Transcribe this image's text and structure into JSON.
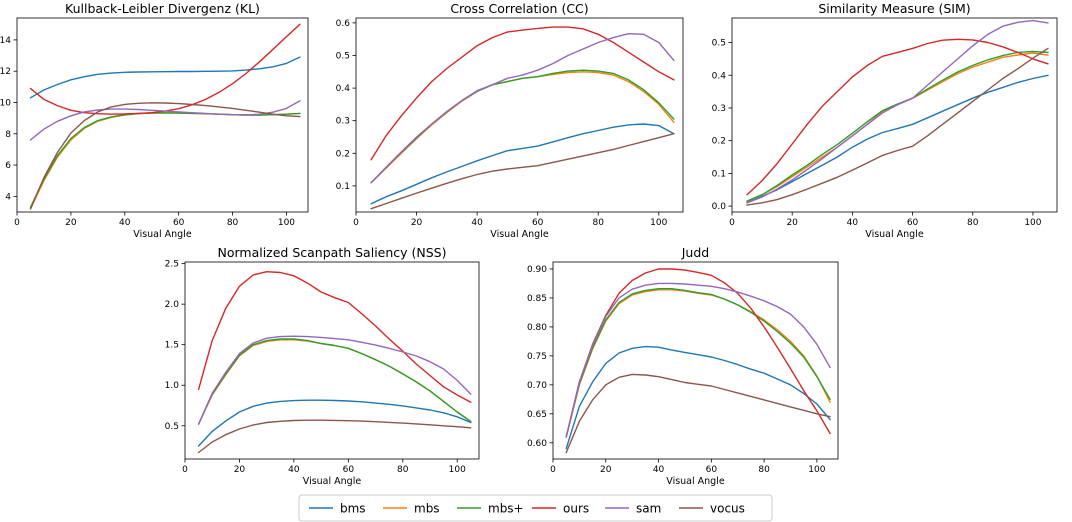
{
  "series_styles": {
    "bms": "#1f77b4",
    "mbs": "#ff7f0e",
    "mbs+": "#2ca02c",
    "ours": "#d62728",
    "sam": "#9467bd",
    "vocus": "#8c564b"
  },
  "legend": [
    "bms",
    "mbs",
    "mbs+",
    "ours",
    "sam",
    "vocus"
  ],
  "chart_data": [
    {
      "type": "line",
      "title": "Kullback-Leibler Divergenz (KL)",
      "xlabel": "Visual Angle",
      "ylabel": "",
      "xlim": [
        0,
        108
      ],
      "ylim": [
        3.0,
        15.4
      ],
      "xticks": [
        0,
        20,
        40,
        60,
        80,
        100
      ],
      "yticks": [
        4,
        6,
        8,
        10,
        12,
        14
      ],
      "x": [
        5,
        10,
        15,
        20,
        25,
        30,
        35,
        40,
        45,
        50,
        55,
        60,
        65,
        70,
        75,
        80,
        85,
        90,
        95,
        100,
        105
      ],
      "series": [
        {
          "name": "bms",
          "values": [
            10.3,
            10.8,
            11.15,
            11.45,
            11.65,
            11.8,
            11.88,
            11.93,
            11.95,
            11.96,
            11.97,
            11.98,
            11.98,
            11.99,
            12.0,
            12.02,
            12.07,
            12.15,
            12.28,
            12.5,
            12.9
          ]
        },
        {
          "name": "mbs",
          "values": [
            3.2,
            5.0,
            6.5,
            7.6,
            8.35,
            8.8,
            9.05,
            9.2,
            9.28,
            9.32,
            9.33,
            9.32,
            9.3,
            9.28,
            9.25,
            9.22,
            9.2,
            9.2,
            9.22,
            9.25,
            9.3
          ]
        },
        {
          "name": "mbs+",
          "values": [
            3.3,
            5.1,
            6.6,
            7.7,
            8.4,
            8.85,
            9.08,
            9.22,
            9.3,
            9.33,
            9.34,
            9.33,
            9.3,
            9.28,
            9.25,
            9.22,
            9.2,
            9.2,
            9.22,
            9.25,
            9.3
          ]
        },
        {
          "name": "ours",
          "values": [
            10.9,
            10.2,
            9.8,
            9.5,
            9.35,
            9.28,
            9.25,
            9.27,
            9.3,
            9.35,
            9.45,
            9.6,
            9.85,
            10.2,
            10.65,
            11.2,
            11.85,
            12.6,
            13.4,
            14.2,
            15.0
          ]
        },
        {
          "name": "sam",
          "values": [
            7.6,
            8.3,
            8.8,
            9.15,
            9.4,
            9.52,
            9.58,
            9.58,
            9.55,
            9.5,
            9.45,
            9.4,
            9.35,
            9.3,
            9.25,
            9.22,
            9.2,
            9.25,
            9.38,
            9.62,
            10.1
          ]
        },
        {
          "name": "vocus",
          "values": [
            3.2,
            5.2,
            6.8,
            8.05,
            8.85,
            9.4,
            9.72,
            9.88,
            9.95,
            9.98,
            9.97,
            9.93,
            9.87,
            9.8,
            9.72,
            9.62,
            9.5,
            9.38,
            9.25,
            9.15,
            9.1
          ]
        }
      ]
    },
    {
      "type": "line",
      "title": "Cross Correlation (CC)",
      "xlabel": "Visual Angle",
      "ylabel": "",
      "xlim": [
        0,
        108
      ],
      "ylim": [
        0.02,
        0.615
      ],
      "xticks": [
        0,
        20,
        40,
        60,
        80,
        100
      ],
      "yticks": [
        0.1,
        0.2,
        0.3,
        0.4,
        0.5,
        0.6
      ],
      "yticklabels": [
        "0.1",
        "0.2",
        "0.3",
        "0.4",
        "0.5",
        "0.6"
      ],
      "x": [
        5,
        10,
        15,
        20,
        25,
        30,
        35,
        40,
        45,
        50,
        55,
        60,
        65,
        70,
        75,
        80,
        85,
        90,
        95,
        100,
        105
      ],
      "series": [
        {
          "name": "bms",
          "values": [
            0.045,
            0.067,
            0.085,
            0.105,
            0.125,
            0.143,
            0.16,
            0.177,
            0.193,
            0.208,
            0.215,
            0.222,
            0.235,
            0.248,
            0.26,
            0.27,
            0.28,
            0.287,
            0.29,
            0.285,
            0.26
          ]
        },
        {
          "name": "mbs",
          "values": [
            0.11,
            0.155,
            0.2,
            0.245,
            0.287,
            0.325,
            0.36,
            0.39,
            0.41,
            0.42,
            0.43,
            0.435,
            0.442,
            0.448,
            0.45,
            0.448,
            0.44,
            0.42,
            0.39,
            0.35,
            0.295
          ]
        },
        {
          "name": "mbs+",
          "values": [
            0.11,
            0.157,
            0.203,
            0.247,
            0.29,
            0.327,
            0.362,
            0.39,
            0.41,
            0.42,
            0.43,
            0.435,
            0.445,
            0.452,
            0.455,
            0.452,
            0.445,
            0.425,
            0.395,
            0.355,
            0.305
          ]
        },
        {
          "name": "ours",
          "values": [
            0.18,
            0.255,
            0.315,
            0.37,
            0.42,
            0.46,
            0.495,
            0.53,
            0.555,
            0.572,
            0.578,
            0.583,
            0.587,
            0.587,
            0.582,
            0.565,
            0.54,
            0.51,
            0.48,
            0.45,
            0.425
          ]
        },
        {
          "name": "sam",
          "values": [
            0.11,
            0.158,
            0.205,
            0.25,
            0.29,
            0.328,
            0.362,
            0.392,
            0.41,
            0.43,
            0.44,
            0.455,
            0.475,
            0.5,
            0.52,
            0.54,
            0.555,
            0.567,
            0.565,
            0.54,
            0.485
          ]
        },
        {
          "name": "vocus",
          "values": [
            0.03,
            0.046,
            0.062,
            0.078,
            0.093,
            0.108,
            0.122,
            0.135,
            0.145,
            0.152,
            0.157,
            0.162,
            0.172,
            0.182,
            0.192,
            0.202,
            0.212,
            0.224,
            0.236,
            0.248,
            0.26
          ]
        }
      ]
    },
    {
      "type": "line",
      "title": "Similarity Measure (SIM)",
      "xlabel": "Visual Angle",
      "ylabel": "",
      "xlim": [
        0,
        108
      ],
      "ylim": [
        -0.018,
        0.575
      ],
      "xticks": [
        0,
        20,
        40,
        60,
        80,
        100
      ],
      "yticks": [
        0.0,
        0.1,
        0.2,
        0.3,
        0.4,
        0.5
      ],
      "yticklabels": [
        "0.0",
        "0.1",
        "0.2",
        "0.3",
        "0.4",
        "0.5"
      ],
      "x": [
        5,
        10,
        15,
        20,
        25,
        30,
        35,
        40,
        45,
        50,
        55,
        60,
        65,
        70,
        75,
        80,
        85,
        90,
        95,
        100,
        105
      ],
      "series": [
        {
          "name": "bms",
          "values": [
            0.01,
            0.03,
            0.05,
            0.075,
            0.1,
            0.125,
            0.15,
            0.18,
            0.205,
            0.225,
            0.237,
            0.25,
            0.27,
            0.29,
            0.31,
            0.33,
            0.348,
            0.363,
            0.378,
            0.39,
            0.4
          ]
        },
        {
          "name": "mbs",
          "values": [
            0.015,
            0.035,
            0.06,
            0.09,
            0.12,
            0.15,
            0.18,
            0.215,
            0.25,
            0.29,
            0.31,
            0.33,
            0.355,
            0.38,
            0.405,
            0.425,
            0.44,
            0.455,
            0.462,
            0.468,
            0.462
          ]
        },
        {
          "name": "mbs+",
          "values": [
            0.015,
            0.035,
            0.063,
            0.095,
            0.125,
            0.158,
            0.188,
            0.223,
            0.258,
            0.292,
            0.312,
            0.33,
            0.358,
            0.385,
            0.41,
            0.43,
            0.447,
            0.46,
            0.47,
            0.473,
            0.47
          ]
        },
        {
          "name": "ours",
          "values": [
            0.035,
            0.078,
            0.13,
            0.19,
            0.25,
            0.305,
            0.35,
            0.395,
            0.43,
            0.458,
            0.47,
            0.482,
            0.497,
            0.507,
            0.51,
            0.508,
            0.5,
            0.487,
            0.47,
            0.45,
            0.435
          ]
        },
        {
          "name": "sam",
          "values": [
            0.01,
            0.028,
            0.052,
            0.08,
            0.112,
            0.145,
            0.18,
            0.215,
            0.25,
            0.285,
            0.31,
            0.33,
            0.37,
            0.41,
            0.45,
            0.49,
            0.525,
            0.55,
            0.562,
            0.567,
            0.56
          ]
        },
        {
          "name": "vocus",
          "values": [
            0.003,
            0.01,
            0.02,
            0.035,
            0.052,
            0.07,
            0.088,
            0.11,
            0.132,
            0.155,
            0.17,
            0.183,
            0.215,
            0.25,
            0.285,
            0.32,
            0.355,
            0.39,
            0.42,
            0.452,
            0.482
          ]
        }
      ]
    },
    {
      "type": "line",
      "title": "Normalized Scanpath Saliency (NSS)",
      "xlabel": "Visual Angle",
      "ylabel": "",
      "xlim": [
        0,
        108
      ],
      "ylim": [
        0.09,
        2.52
      ],
      "xticks": [
        0,
        20,
        40,
        60,
        80,
        100
      ],
      "yticks": [
        0.5,
        1.0,
        1.5,
        2.0,
        2.5
      ],
      "yticklabels": [
        "0.5",
        "1.0",
        "1.5",
        "2.0",
        "2.5"
      ],
      "x": [
        5,
        10,
        15,
        20,
        25,
        30,
        35,
        40,
        45,
        50,
        55,
        60,
        65,
        70,
        75,
        80,
        85,
        90,
        95,
        100,
        105
      ],
      "series": [
        {
          "name": "bms",
          "values": [
            0.25,
            0.43,
            0.56,
            0.67,
            0.74,
            0.78,
            0.8,
            0.81,
            0.815,
            0.815,
            0.812,
            0.805,
            0.795,
            0.78,
            0.765,
            0.745,
            0.72,
            0.695,
            0.66,
            0.61,
            0.54
          ]
        },
        {
          "name": "mbs",
          "values": [
            0.52,
            0.88,
            1.13,
            1.36,
            1.49,
            1.54,
            1.56,
            1.56,
            1.545,
            1.515,
            1.49,
            1.455,
            1.39,
            1.315,
            1.235,
            1.14,
            1.04,
            0.93,
            0.8,
            0.67,
            0.555
          ]
        },
        {
          "name": "mbs+",
          "values": [
            0.52,
            0.89,
            1.14,
            1.37,
            1.5,
            1.55,
            1.57,
            1.57,
            1.55,
            1.515,
            1.49,
            1.455,
            1.39,
            1.315,
            1.235,
            1.14,
            1.04,
            0.93,
            0.8,
            0.67,
            0.55
          ]
        },
        {
          "name": "ours",
          "values": [
            0.95,
            1.55,
            1.95,
            2.22,
            2.36,
            2.4,
            2.39,
            2.35,
            2.26,
            2.15,
            2.08,
            2.02,
            1.88,
            1.73,
            1.57,
            1.42,
            1.26,
            1.12,
            0.98,
            0.88,
            0.79
          ]
        },
        {
          "name": "sam",
          "values": [
            0.52,
            0.9,
            1.16,
            1.39,
            1.52,
            1.58,
            1.6,
            1.605,
            1.6,
            1.59,
            1.575,
            1.56,
            1.53,
            1.495,
            1.455,
            1.41,
            1.36,
            1.29,
            1.2,
            1.06,
            0.89
          ]
        },
        {
          "name": "vocus",
          "values": [
            0.17,
            0.3,
            0.39,
            0.46,
            0.51,
            0.54,
            0.555,
            0.565,
            0.568,
            0.568,
            0.566,
            0.562,
            0.557,
            0.55,
            0.542,
            0.533,
            0.523,
            0.512,
            0.5,
            0.488,
            0.475
          ]
        }
      ]
    },
    {
      "type": "line",
      "title": "Judd",
      "xlabel": "Visual Angle",
      "ylabel": "",
      "xlim": [
        0,
        108
      ],
      "ylim": [
        0.572,
        0.912
      ],
      "xticks": [
        0,
        20,
        40,
        60,
        80,
        100
      ],
      "yticks": [
        0.6,
        0.65,
        0.7,
        0.75,
        0.8,
        0.85,
        0.9
      ],
      "yticklabels": [
        "0.60",
        "0.65",
        "0.70",
        "0.75",
        "0.80",
        "0.85",
        "0.90"
      ],
      "x": [
        5,
        10,
        15,
        20,
        25,
        30,
        35,
        40,
        45,
        50,
        55,
        60,
        65,
        70,
        75,
        80,
        85,
        90,
        95,
        100,
        105
      ],
      "series": [
        {
          "name": "bms",
          "values": [
            0.59,
            0.663,
            0.705,
            0.737,
            0.755,
            0.763,
            0.766,
            0.765,
            0.76,
            0.756,
            0.752,
            0.748,
            0.742,
            0.735,
            0.727,
            0.72,
            0.71,
            0.7,
            0.685,
            0.667,
            0.64
          ]
        },
        {
          "name": "mbs",
          "values": [
            0.61,
            0.7,
            0.762,
            0.81,
            0.84,
            0.855,
            0.861,
            0.864,
            0.864,
            0.862,
            0.858,
            0.855,
            0.848,
            0.838,
            0.826,
            0.812,
            0.795,
            0.775,
            0.75,
            0.715,
            0.67
          ]
        },
        {
          "name": "mbs+",
          "values": [
            0.61,
            0.702,
            0.764,
            0.812,
            0.842,
            0.857,
            0.863,
            0.866,
            0.866,
            0.863,
            0.859,
            0.856,
            0.848,
            0.838,
            0.825,
            0.81,
            0.792,
            0.772,
            0.748,
            0.714,
            0.675
          ]
        },
        {
          "name": "ours",
          "values": [
            0.61,
            0.705,
            0.77,
            0.82,
            0.858,
            0.88,
            0.893,
            0.9,
            0.9,
            0.898,
            0.894,
            0.889,
            0.876,
            0.858,
            0.832,
            0.8,
            0.765,
            0.728,
            0.69,
            0.655,
            0.616
          ]
        },
        {
          "name": "sam",
          "values": [
            0.61,
            0.705,
            0.768,
            0.818,
            0.85,
            0.865,
            0.872,
            0.875,
            0.875,
            0.874,
            0.872,
            0.87,
            0.866,
            0.86,
            0.853,
            0.845,
            0.835,
            0.822,
            0.8,
            0.77,
            0.73
          ]
        },
        {
          "name": "vocus",
          "values": [
            0.583,
            0.637,
            0.674,
            0.7,
            0.713,
            0.718,
            0.717,
            0.714,
            0.709,
            0.704,
            0.701,
            0.698,
            0.692,
            0.686,
            0.68,
            0.674,
            0.668,
            0.662,
            0.656,
            0.65,
            0.645
          ]
        }
      ]
    }
  ]
}
